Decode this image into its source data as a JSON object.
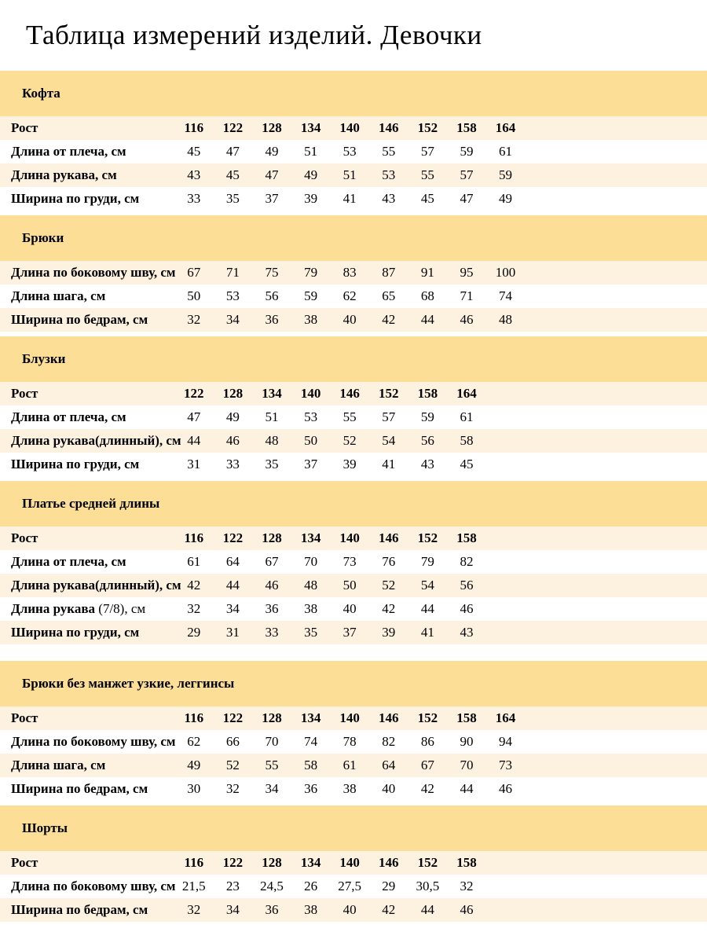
{
  "page_title": "Таблица измерений изделий. Девочки",
  "colors": {
    "band": "#fcde96",
    "row_alt": "#fdf1e0",
    "row_plain": "#ffffff",
    "text": "#000000"
  },
  "sections": [
    {
      "title": "Кофта",
      "gap": "small",
      "rows": [
        {
          "label": "Рост",
          "suffix": "",
          "bold_values": true,
          "values": [
            "116",
            "122",
            "128",
            "134",
            "140",
            "146",
            "152",
            "158",
            "164"
          ]
        },
        {
          "label": "Длина от плеча, см",
          "suffix": "",
          "bold_values": false,
          "values": [
            "45",
            "47",
            "49",
            "51",
            "53",
            "55",
            "57",
            "59",
            "61"
          ]
        },
        {
          "label": "Длина рукава, см",
          "suffix": "",
          "bold_values": false,
          "values": [
            "43",
            "45",
            "47",
            "49",
            "51",
            "53",
            "55",
            "57",
            "59"
          ]
        },
        {
          "label": "Ширина по груди, см",
          "suffix": "",
          "bold_values": false,
          "values": [
            "33",
            "35",
            "37",
            "39",
            "41",
            "43",
            "45",
            "47",
            "49"
          ]
        }
      ]
    },
    {
      "title": "Брюки",
      "gap": "small",
      "rows": [
        {
          "label": "Длина по боковому шву, см",
          "suffix": "",
          "bold_values": false,
          "values": [
            "67",
            "71",
            "75",
            "79",
            "83",
            "87",
            "91",
            "95",
            "100"
          ]
        },
        {
          "label": "Длина шага, см",
          "suffix": "",
          "bold_values": false,
          "values": [
            "50",
            "53",
            "56",
            "59",
            "62",
            "65",
            "68",
            "71",
            "74"
          ]
        },
        {
          "label": "Ширина по бедрам, см",
          "suffix": "",
          "bold_values": false,
          "values": [
            "32",
            "34",
            "36",
            "38",
            "40",
            "42",
            "44",
            "46",
            "48"
          ]
        }
      ]
    },
    {
      "title": "Блузки",
      "gap": "small",
      "rows": [
        {
          "label": "Рост",
          "suffix": "",
          "bold_values": true,
          "values": [
            "122",
            "128",
            "134",
            "140",
            "146",
            "152",
            "158",
            "164"
          ]
        },
        {
          "label": "Длина от плеча, см",
          "suffix": "",
          "bold_values": false,
          "values": [
            "47",
            "49",
            "51",
            "53",
            "55",
            "57",
            "59",
            "61"
          ]
        },
        {
          "label": "Длина рукава(длинный), см",
          "suffix": "",
          "bold_values": false,
          "values": [
            "44",
            "46",
            "48",
            "50",
            "52",
            "54",
            "56",
            "58"
          ]
        },
        {
          "label": "Ширина по груди, см",
          "suffix": "",
          "bold_values": false,
          "values": [
            "31",
            "33",
            "35",
            "37",
            "39",
            "41",
            "43",
            "45"
          ]
        }
      ]
    },
    {
      "title": "Платье средней длины",
      "gap": "small",
      "rows": [
        {
          "label": "Рост",
          "suffix": "",
          "bold_values": true,
          "values": [
            "116",
            "122",
            "128",
            "134",
            "140",
            "146",
            "152",
            "158"
          ]
        },
        {
          "label": "Длина от плеча, см",
          "suffix": "",
          "bold_values": false,
          "values": [
            "61",
            "64",
            "67",
            "70",
            "73",
            "76",
            "79",
            "82"
          ]
        },
        {
          "label": "Длина рукава(длинный), см",
          "suffix": "",
          "bold_values": false,
          "values": [
            "42",
            "44",
            "46",
            "48",
            "50",
            "52",
            "54",
            "56"
          ]
        },
        {
          "label": "Длина рукава",
          "suffix": " (7/8), см",
          "bold_values": false,
          "values": [
            "32",
            "34",
            "36",
            "38",
            "40",
            "42",
            "44",
            "46"
          ]
        },
        {
          "label": "Ширина по груди, см",
          "suffix": "",
          "bold_values": false,
          "values": [
            "29",
            "31",
            "33",
            "35",
            "37",
            "39",
            "41",
            "43"
          ]
        }
      ]
    },
    {
      "title": "Брюки без манжет узкие, леггинсы",
      "gap": "large",
      "rows": [
        {
          "label": "Рост",
          "suffix": "",
          "bold_values": true,
          "values": [
            "116",
            "122",
            "128",
            "134",
            "140",
            "146",
            "152",
            "158",
            "164"
          ]
        },
        {
          "label": "Длина по боковому шву, см",
          "suffix": "",
          "bold_values": false,
          "values": [
            "62",
            "66",
            "70",
            "74",
            "78",
            "82",
            "86",
            "90",
            "94"
          ]
        },
        {
          "label": "Длина шага, см",
          "suffix": "",
          "bold_values": false,
          "values": [
            "49",
            "52",
            "55",
            "58",
            "61",
            "64",
            "67",
            "70",
            "73"
          ]
        },
        {
          "label": "Ширина по бедрам, см",
          "suffix": "",
          "bold_values": false,
          "values": [
            "30",
            "32",
            "34",
            "36",
            "38",
            "40",
            "42",
            "44",
            "46"
          ]
        }
      ]
    },
    {
      "title": "Шорты",
      "gap": "small",
      "rows": [
        {
          "label": "Рост",
          "suffix": "",
          "bold_values": true,
          "values": [
            "116",
            "122",
            "128",
            "134",
            "140",
            "146",
            "152",
            "158"
          ]
        },
        {
          "label": "Длина по боковому шву, см",
          "suffix": "",
          "bold_values": false,
          "values": [
            "21,5",
            "23",
            "24,5",
            "26",
            "27,5",
            "29",
            "30,5",
            "32"
          ]
        },
        {
          "label": "Ширина по бедрам, см",
          "suffix": "",
          "bold_values": false,
          "values": [
            "32",
            "34",
            "36",
            "38",
            "40",
            "42",
            "44",
            "46"
          ]
        }
      ]
    }
  ]
}
